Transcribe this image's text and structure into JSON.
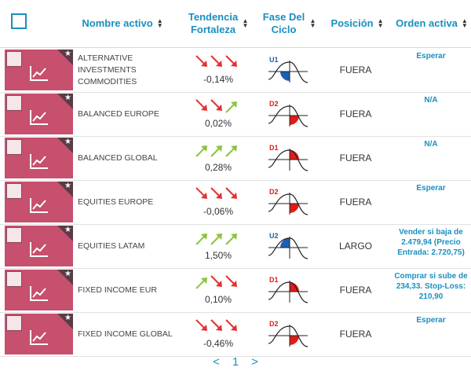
{
  "header": {
    "name": "Nombre activo",
    "trend": "Tendencia Fortaleza",
    "cycle": "Fase Del Ciclo",
    "position": "Posición",
    "order": "Orden activa"
  },
  "rows": [
    {
      "name": "ALTERNATIVE INVESTMENTS COMMODITIES",
      "trend_dirs": [
        "down",
        "down",
        "down"
      ],
      "trend_pct": "-0,14%",
      "cycle_label": "U1",
      "cycle_quadrant": "bottom-left",
      "cycle_color": "#1e5fb3",
      "position": "FUERA",
      "order": "Esperar"
    },
    {
      "name": "BALANCED EUROPE",
      "trend_dirs": [
        "down",
        "down",
        "up"
      ],
      "trend_pct": "0,02%",
      "cycle_label": "D2",
      "cycle_quadrant": "bottom-right",
      "cycle_color": "#e01b1b",
      "position": "FUERA",
      "order": "N/A"
    },
    {
      "name": "BALANCED GLOBAL",
      "trend_dirs": [
        "up",
        "up",
        "up"
      ],
      "trend_pct": "0,28%",
      "cycle_label": "D1",
      "cycle_quadrant": "top-right",
      "cycle_color": "#e01b1b",
      "position": "FUERA",
      "order": "N/A"
    },
    {
      "name": "EQUITIES EUROPE",
      "trend_dirs": [
        "down",
        "down",
        "down"
      ],
      "trend_pct": "-0,06%",
      "cycle_label": "D2",
      "cycle_quadrant": "bottom-right",
      "cycle_color": "#e01b1b",
      "position": "FUERA",
      "order": "Esperar"
    },
    {
      "name": "EQUITIES LATAM",
      "trend_dirs": [
        "up",
        "up",
        "up"
      ],
      "trend_pct": "1,50%",
      "cycle_label": "U2",
      "cycle_quadrant": "top-left",
      "cycle_color": "#1e5fb3",
      "position": "LARGO",
      "order": "Vender si baja de 2.479,94 (Precio Entrada: 2.720,75)"
    },
    {
      "name": "FIXED INCOME EUR",
      "trend_dirs": [
        "up",
        "down",
        "down"
      ],
      "trend_pct": "0,10%",
      "cycle_label": "D1",
      "cycle_quadrant": "top-right",
      "cycle_color": "#e01b1b",
      "position": "FUERA",
      "order": "Comprar si sube de 234,33. Stop-Loss: 210,90"
    },
    {
      "name": "FIXED INCOME GLOBAL",
      "trend_dirs": [
        "down",
        "down",
        "down"
      ],
      "trend_pct": "-0,46%",
      "cycle_label": "D2",
      "cycle_quadrant": "bottom-right",
      "cycle_color": "#e01b1b",
      "position": "FUERA",
      "order": "Esperar"
    }
  ],
  "pager": {
    "prev": "<",
    "current": "1",
    "next": ">"
  },
  "colors": {
    "accent": "#1a8fc0",
    "thumb": "#c6506e",
    "down_arrow": "#e53030",
    "up_arrow": "#8ac43f"
  }
}
